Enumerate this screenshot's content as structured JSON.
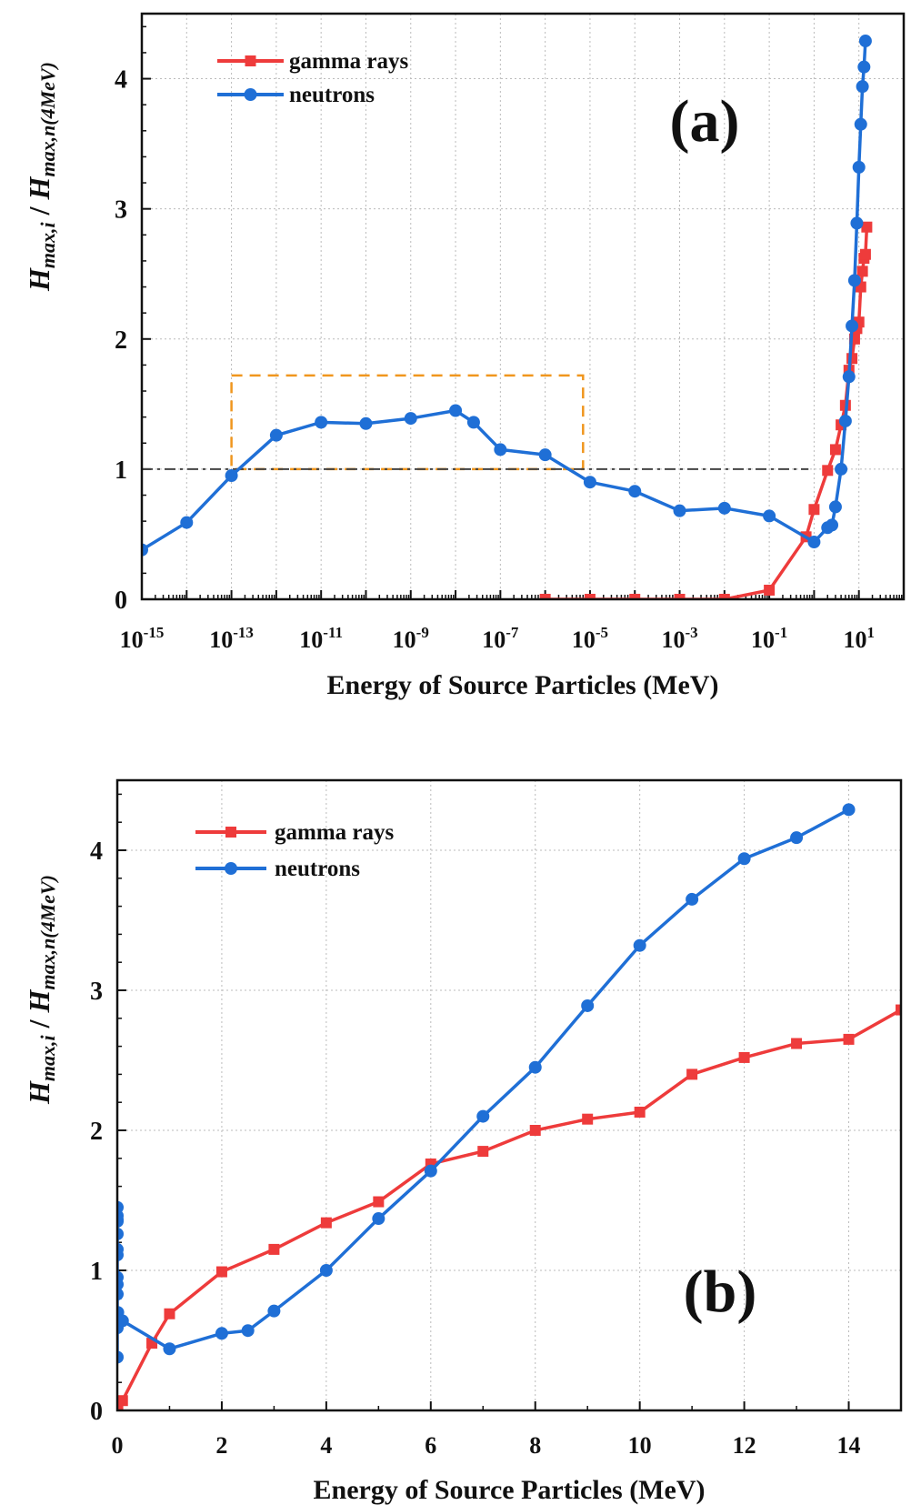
{
  "chart_data": [
    {
      "panel_label": "(a)",
      "type": "line",
      "xscale": "log",
      "xlim": [
        1e-15,
        100
      ],
      "ylim": [
        0,
        4.5
      ],
      "xlabel": "Energy of Source Particles (MeV)",
      "ylabel": {
        "main": "H",
        "sub1": "max,i",
        "sep": " / ",
        "main2": "H",
        "sub2": "max,n(4MeV)"
      },
      "xtick_base": "10",
      "xtick_exponents": [
        "-15",
        "-13",
        "-11",
        "-9",
        "-7",
        "-5",
        "-3",
        "-1",
        "1"
      ],
      "yticks": [
        "0",
        "1",
        "2",
        "3",
        "4"
      ],
      "grid": true,
      "legend_placement": "top-left",
      "reference_line": {
        "y": 1,
        "x_range": [
          1e-15,
          0.75
        ],
        "style": "dash-dot",
        "color": "#444444"
      },
      "highlight_box": {
        "x_range": [
          1e-13,
          7e-06
        ],
        "y_range": [
          1,
          1.72
        ],
        "style": "dashed",
        "color": "#f0961e"
      }
    },
    {
      "panel_label": "(b)",
      "type": "line",
      "xscale": "linear",
      "xlim": [
        0,
        15
      ],
      "ylim": [
        0,
        4.5
      ],
      "xlabel": "Energy of Source Particles (MeV)",
      "ylabel": {
        "main": "H",
        "sub1": "max,i",
        "sep": " / ",
        "main2": "H",
        "sub2": "max,n(4MeV)"
      },
      "xticks": [
        "0",
        "2",
        "4",
        "6",
        "8",
        "10",
        "12",
        "14"
      ],
      "yticks": [
        "0",
        "1",
        "2",
        "3",
        "4"
      ],
      "grid": true,
      "legend_placement": "top-left"
    }
  ],
  "series": [
    {
      "name": "gamma rays",
      "color": "#ee3b3b",
      "marker": "square",
      "x": [
        1e-06,
        1e-05,
        0.0001,
        0.001,
        0.01,
        0.1,
        0.662,
        1,
        2,
        3,
        4,
        5,
        6,
        7,
        8,
        9,
        10,
        11,
        12,
        13,
        14,
        15
      ],
      "y": [
        0,
        0,
        0,
        0,
        0,
        0.07,
        0.48,
        0.69,
        0.99,
        1.15,
        1.34,
        1.49,
        1.76,
        1.85,
        2.0,
        2.08,
        2.13,
        2.4,
        2.52,
        2.62,
        2.65,
        2.86
      ]
    },
    {
      "name": "neutrons",
      "color": "#1f6fd6",
      "marker": "circle",
      "x": [
        1e-15,
        1e-14,
        1e-13,
        1e-12,
        1e-11,
        1e-10,
        1e-09,
        1e-08,
        2.53e-08,
        1e-07,
        1e-06,
        1e-05,
        0.0001,
        0.001,
        0.01,
        0.1,
        1,
        2,
        2.5,
        3,
        4,
        5,
        6,
        7,
        8,
        9,
        10,
        11,
        12,
        13,
        14
      ],
      "y": [
        0.38,
        0.59,
        0.95,
        1.26,
        1.36,
        1.35,
        1.39,
        1.45,
        1.36,
        1.15,
        1.11,
        0.9,
        0.83,
        0.68,
        0.7,
        0.64,
        0.44,
        0.55,
        0.57,
        0.71,
        1.0,
        1.37,
        1.71,
        2.1,
        2.45,
        2.89,
        3.32,
        3.65,
        3.94,
        4.09,
        4.29
      ]
    }
  ]
}
